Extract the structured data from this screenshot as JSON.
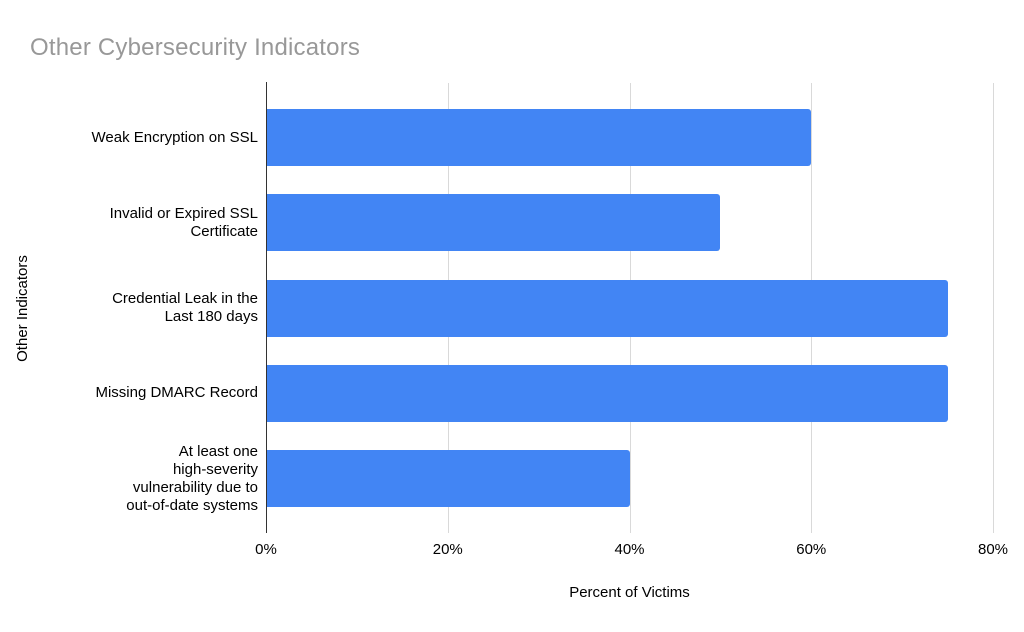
{
  "title": "Other Cybersecurity Indicators",
  "colors": {
    "bar": "#4285F4",
    "title_text": "#989898",
    "gridline": "#d9d9d9",
    "axis_line": "#333333",
    "text": "#000000",
    "background": "#ffffff"
  },
  "chart_data": {
    "type": "bar",
    "orientation": "horizontal",
    "title": "Other Cybersecurity Indicators",
    "xlabel": "Percent of Victims",
    "ylabel": "Other Indicators",
    "categories": [
      "Weak Encryption on SSL",
      "Invalid or Expired SSL Certificate",
      "Credential Leak in the Last 180 days",
      "Missing DMARC Record",
      "At least one high-severity vulnerability due to out-of-date systems"
    ],
    "values": [
      60,
      50,
      75,
      75,
      40
    ],
    "xlim": [
      0,
      80
    ],
    "xticks": [
      "0%",
      "20%",
      "40%",
      "60%",
      "80%"
    ],
    "grid": true,
    "legend": "none",
    "bar_color": "#4285F4"
  },
  "labels_display": [
    "Weak Encryption on SSL",
    "Invalid or Expired SSL\nCertificate",
    "Credential Leak in the\nLast 180 days",
    "Missing DMARC Record",
    "At least one\nhigh-severity\nvulnerability due to\nout-of-date systems"
  ]
}
